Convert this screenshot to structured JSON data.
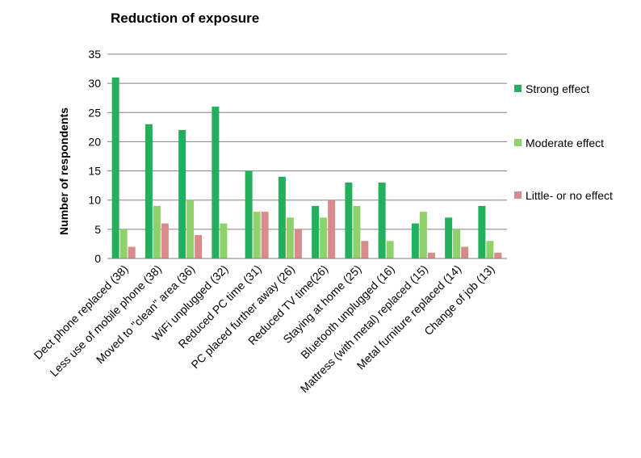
{
  "chart_data": {
    "type": "bar",
    "title": "Reduction of exposure",
    "xlabel": "",
    "ylabel": "Number of respondents",
    "ylim": [
      0,
      35
    ],
    "yticks": [
      "0",
      "5",
      "10",
      "15",
      "20",
      "25",
      "30",
      "35"
    ],
    "grid": true,
    "legend_position": "right",
    "categories": [
      "Dect phone replaced (38)",
      "Less use of mobile phone (38)",
      "Moved to \"clean\" area (36)",
      "WiFi unplugged (32)",
      "Reduced PC time (31)",
      "PC placed further away (26)",
      "Reduced TV time(26)",
      "Staying at home (25)",
      "Bluetooth unplugged (16)",
      "Mattress (with metal) replaced (15)",
      "Metal furniture replaced (14)",
      "Change of job (13)"
    ],
    "series": [
      {
        "name": "Strong effect",
        "color": "#22b05c",
        "values": [
          31,
          23,
          22,
          26,
          15,
          14,
          9,
          13,
          13,
          6,
          7,
          9
        ]
      },
      {
        "name": "Moderate effect",
        "color": "#8fd16a",
        "values": [
          5,
          9,
          10,
          6,
          8,
          7,
          7,
          9,
          3,
          8,
          5,
          3
        ]
      },
      {
        "name": "Little- or no effect",
        "color": "#d98a8a",
        "values": [
          2,
          6,
          4,
          0,
          8,
          5,
          10,
          3,
          0,
          1,
          2,
          1
        ]
      }
    ]
  }
}
